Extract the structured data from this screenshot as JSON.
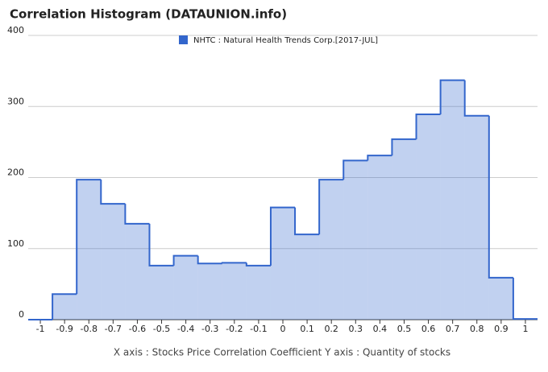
{
  "chart_data": {
    "type": "step-area",
    "title": "Correlation Histogram (DATAUNION.info)",
    "x_axis_label": "X axis : Stocks Price Correlation Coefficient  Y axis : Quantity of stocks",
    "x": [
      -1,
      -0.9,
      -0.8,
      -0.7,
      -0.6,
      -0.5,
      -0.4,
      -0.3,
      -0.2,
      -0.1,
      0,
      0.1,
      0.2,
      0.3,
      0.4,
      0.5,
      0.6,
      0.7,
      0.8,
      0.9,
      1
    ],
    "series": [
      {
        "name": "NHTC : Natural Health Trends Corp.[2017-JUL]",
        "color": "#3366cc",
        "values": [
          0,
          36,
          197,
          163,
          135,
          76,
          90,
          79,
          80,
          76,
          158,
          120,
          197,
          224,
          231,
          254,
          289,
          337,
          287,
          59,
          1
        ]
      }
    ],
    "xlim": [
      -1.05,
      1.05
    ],
    "xticks": [
      -1,
      -0.9,
      -0.8,
      -0.7,
      -0.6,
      -0.5,
      -0.4,
      -0.3,
      -0.2,
      -0.1,
      0,
      0.1,
      0.2,
      0.3,
      0.4,
      0.5,
      0.6,
      0.7,
      0.8,
      0.9,
      1
    ],
    "ylim": [
      0,
      400
    ],
    "yticks": [
      0,
      100,
      200,
      300,
      400
    ],
    "grid": true
  }
}
